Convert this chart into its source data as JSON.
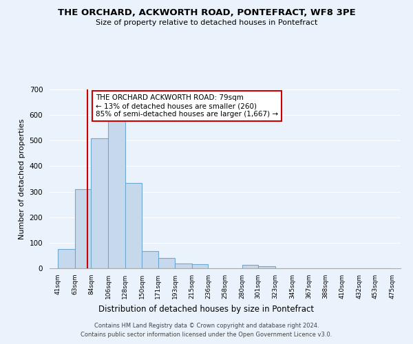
{
  "title": "THE ORCHARD, ACKWORTH ROAD, PONTEFRACT, WF8 3PE",
  "subtitle": "Size of property relative to detached houses in Pontefract",
  "xlabel": "Distribution of detached houses by size in Pontefract",
  "ylabel": "Number of detached properties",
  "bar_edges": [
    41,
    63,
    84,
    106,
    128,
    150,
    171,
    193,
    215,
    236,
    258,
    280,
    301,
    323,
    345,
    367,
    388,
    410,
    432,
    453,
    475
  ],
  "bar_heights": [
    75,
    310,
    510,
    577,
    335,
    68,
    40,
    18,
    17,
    0,
    0,
    13,
    8,
    0,
    0,
    0,
    0,
    0,
    0,
    0
  ],
  "bar_color": "#c6d9ec",
  "bar_edge_color": "#6ea8d0",
  "property_line_x": 79,
  "property_line_color": "#cc0000",
  "ylim": [
    0,
    700
  ],
  "yticks": [
    0,
    100,
    200,
    300,
    400,
    500,
    600,
    700
  ],
  "annotation_text": "THE ORCHARD ACKWORTH ROAD: 79sqm\n← 13% of detached houses are smaller (260)\n85% of semi-detached houses are larger (1,667) →",
  "annotation_box_color": "#ffffff",
  "annotation_box_edge": "#cc0000",
  "footer_line1": "Contains HM Land Registry data © Crown copyright and database right 2024.",
  "footer_line2": "Contains public sector information licensed under the Open Government Licence v3.0.",
  "background_color": "#eaf2fb",
  "grid_color": "#ffffff",
  "tick_labels": [
    "41sqm",
    "63sqm",
    "84sqm",
    "106sqm",
    "128sqm",
    "150sqm",
    "171sqm",
    "193sqm",
    "215sqm",
    "236sqm",
    "258sqm",
    "280sqm",
    "301sqm",
    "323sqm",
    "345sqm",
    "367sqm",
    "388sqm",
    "410sqm",
    "432sqm",
    "453sqm",
    "475sqm"
  ]
}
